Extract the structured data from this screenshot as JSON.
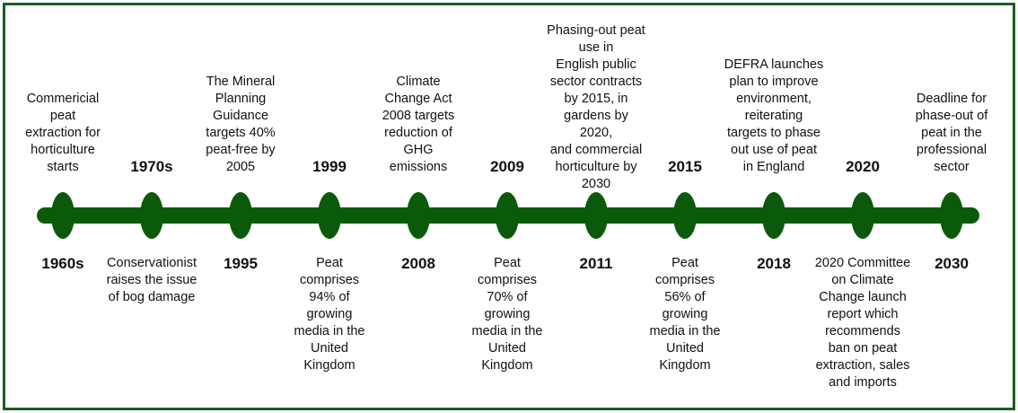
{
  "colors": {
    "line": "#0b5a0b",
    "border": "#1b5e20"
  },
  "events": [
    {
      "year": "1960s",
      "year_pos": "bottom",
      "text": "Commericial\npeat\nextraction for\nhorticulture\nstarts",
      "text_pos": "top"
    },
    {
      "year": "1970s",
      "year_pos": "top",
      "text": "Conservationist\nraises the issue\nof bog damage",
      "text_pos": "bottom"
    },
    {
      "year": "1995",
      "year_pos": "bottom",
      "text": "The Mineral\nPlanning\nGuidance\ntargets 40%\npeat-free by\n2005",
      "text_pos": "top"
    },
    {
      "year": "1999",
      "year_pos": "top",
      "text": "Peat\ncomprises\n94% of\ngrowing\nmedia in the\nUnited\nKingdom",
      "text_pos": "bottom"
    },
    {
      "year": "2008",
      "year_pos": "bottom",
      "text": "Climate\nChange Act\n2008 targets\nreduction of\nGHG\nemissions",
      "text_pos": "top"
    },
    {
      "year": "2009",
      "year_pos": "top",
      "text": "Peat\ncomprises\n70% of\ngrowing\nmedia in the\nUnited\nKingdom",
      "text_pos": "bottom"
    },
    {
      "year": "2011",
      "year_pos": "bottom",
      "text": "Phasing-out peat\nuse in\nEnglish public\nsector contracts\nby 2015, in\ngardens by 2020,\nand commercial\nhorticulture by\n2030",
      "text_pos": "top"
    },
    {
      "year": "2015",
      "year_pos": "top",
      "text": "Peat\ncomprises\n56% of\ngrowing\nmedia in the\nUnited\nKingdom",
      "text_pos": "bottom"
    },
    {
      "year": "2018",
      "year_pos": "bottom",
      "text": "DEFRA launches\nplan to improve\nenvironment,\nreiterating\ntargets to phase\nout use of peat\nin England",
      "text_pos": "top"
    },
    {
      "year": "2020",
      "year_pos": "top",
      "text": "2020 Committee\non Climate\nChange launch\nreport which\nrecommends\nban on peat\nextraction, sales\nand imports",
      "text_pos": "bottom"
    },
    {
      "year": "2030",
      "year_pos": "bottom",
      "text": "Deadline for\nphase-out of\npeat in the\nprofessional\nsector",
      "text_pos": "top"
    }
  ]
}
